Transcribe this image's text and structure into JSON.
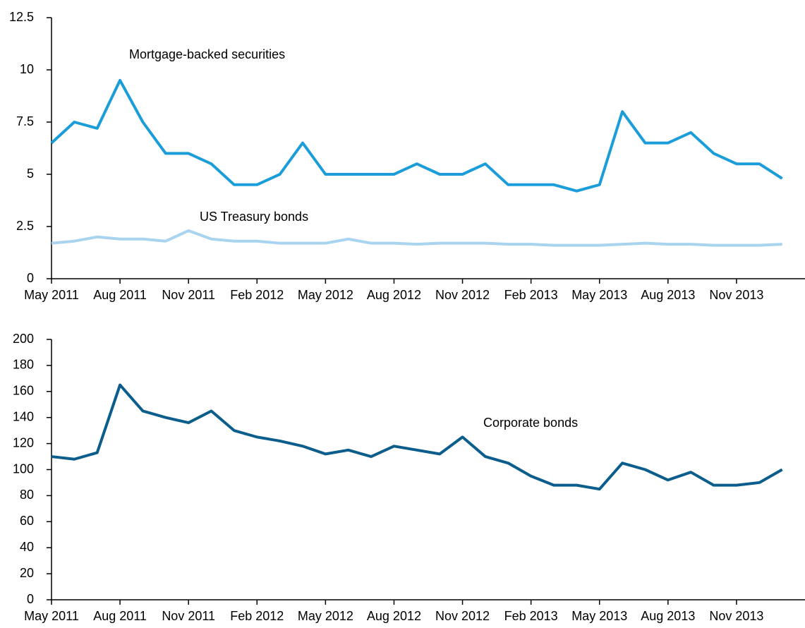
{
  "chart_data": [
    {
      "type": "line",
      "x": [
        "2011-05",
        "2011-06",
        "2011-07",
        "2011-08",
        "2011-09",
        "2011-10",
        "2011-11",
        "2011-12",
        "2012-01",
        "2012-02",
        "2012-03",
        "2012-04",
        "2012-05",
        "2012-06",
        "2012-07",
        "2012-08",
        "2012-09",
        "2012-10",
        "2012-11",
        "2012-12",
        "2013-01",
        "2013-02",
        "2013-03",
        "2013-04",
        "2013-05",
        "2013-06",
        "2013-07",
        "2013-08",
        "2013-09",
        "2013-10",
        "2013-11",
        "2013-12",
        "2014-01"
      ],
      "xlim": [
        "2011-05",
        "2014-02"
      ],
      "xticks": [
        {
          "value": "2011-05",
          "label": "May 2011"
        },
        {
          "value": "2011-08",
          "label": "Aug 2011"
        },
        {
          "value": "2011-11",
          "label": "Nov 2011"
        },
        {
          "value": "2012-02",
          "label": "Feb 2012"
        },
        {
          "value": "2012-05",
          "label": "May 2012"
        },
        {
          "value": "2012-08",
          "label": "Aug 2012"
        },
        {
          "value": "2012-11",
          "label": "Nov 2012"
        },
        {
          "value": "2013-02",
          "label": "Feb 2013"
        },
        {
          "value": "2013-05",
          "label": "May 2013"
        },
        {
          "value": "2013-08",
          "label": "Aug 2013"
        },
        {
          "value": "2013-11",
          "label": "Nov 2013"
        }
      ],
      "ylim": [
        0,
        12.5
      ],
      "yticks": [
        0,
        2.5,
        5,
        7.5,
        10,
        12.5
      ],
      "series": [
        {
          "name": "Mortgage-backed securities",
          "color": "#1b9dd9",
          "values": [
            6.5,
            7.5,
            7.2,
            9.5,
            7.5,
            6.0,
            6.0,
            5.5,
            4.5,
            4.5,
            5.0,
            6.5,
            5.0,
            5.0,
            5.0,
            5.0,
            5.5,
            5.0,
            5.0,
            5.5,
            4.5,
            4.5,
            4.5,
            4.2,
            4.5,
            8.0,
            6.5,
            6.5,
            7.0,
            6.0,
            5.5,
            5.5,
            4.8
          ]
        },
        {
          "name": "US Treasury bonds",
          "color": "#a9d4ef",
          "values": [
            1.7,
            1.8,
            2.0,
            1.9,
            1.9,
            1.8,
            2.3,
            1.9,
            1.8,
            1.8,
            1.7,
            1.7,
            1.7,
            1.9,
            1.7,
            1.7,
            1.65,
            1.7,
            1.7,
            1.7,
            1.65,
            1.65,
            1.6,
            1.6,
            1.6,
            1.65,
            1.7,
            1.65,
            1.65,
            1.6,
            1.6,
            1.6,
            1.65
          ]
        }
      ]
    },
    {
      "type": "line",
      "x": [
        "2011-05",
        "2011-06",
        "2011-07",
        "2011-08",
        "2011-09",
        "2011-10",
        "2011-11",
        "2011-12",
        "2012-01",
        "2012-02",
        "2012-03",
        "2012-04",
        "2012-05",
        "2012-06",
        "2012-07",
        "2012-08",
        "2012-09",
        "2012-10",
        "2012-11",
        "2012-12",
        "2013-01",
        "2013-02",
        "2013-03",
        "2013-04",
        "2013-05",
        "2013-06",
        "2013-07",
        "2013-08",
        "2013-09",
        "2013-10",
        "2013-11",
        "2013-12",
        "2014-01"
      ],
      "xlim": [
        "2011-05",
        "2014-02"
      ],
      "xticks": [
        {
          "value": "2011-05",
          "label": "May 2011"
        },
        {
          "value": "2011-08",
          "label": "Aug 2011"
        },
        {
          "value": "2011-11",
          "label": "Nov 2011"
        },
        {
          "value": "2012-02",
          "label": "Feb 2012"
        },
        {
          "value": "2012-05",
          "label": "May 2012"
        },
        {
          "value": "2012-08",
          "label": "Aug 2012"
        },
        {
          "value": "2012-11",
          "label": "Nov 2012"
        },
        {
          "value": "2013-02",
          "label": "Feb 2013"
        },
        {
          "value": "2013-05",
          "label": "May 2013"
        },
        {
          "value": "2013-08",
          "label": "Aug 2013"
        },
        {
          "value": "2013-11",
          "label": "Nov 2013"
        }
      ],
      "ylim": [
        0,
        200
      ],
      "yticks": [
        0,
        20,
        40,
        60,
        80,
        100,
        120,
        140,
        160,
        180,
        200
      ],
      "series": [
        {
          "name": "Corporate bonds",
          "color": "#0b5d8c",
          "values": [
            110,
            108,
            113,
            165,
            145,
            140,
            136,
            145,
            130,
            125,
            122,
            118,
            112,
            115,
            110,
            118,
            115,
            112,
            125,
            110,
            105,
            95,
            88,
            88,
            85,
            105,
            100,
            92,
            98,
            88,
            88,
            90,
            100
          ]
        }
      ]
    }
  ]
}
